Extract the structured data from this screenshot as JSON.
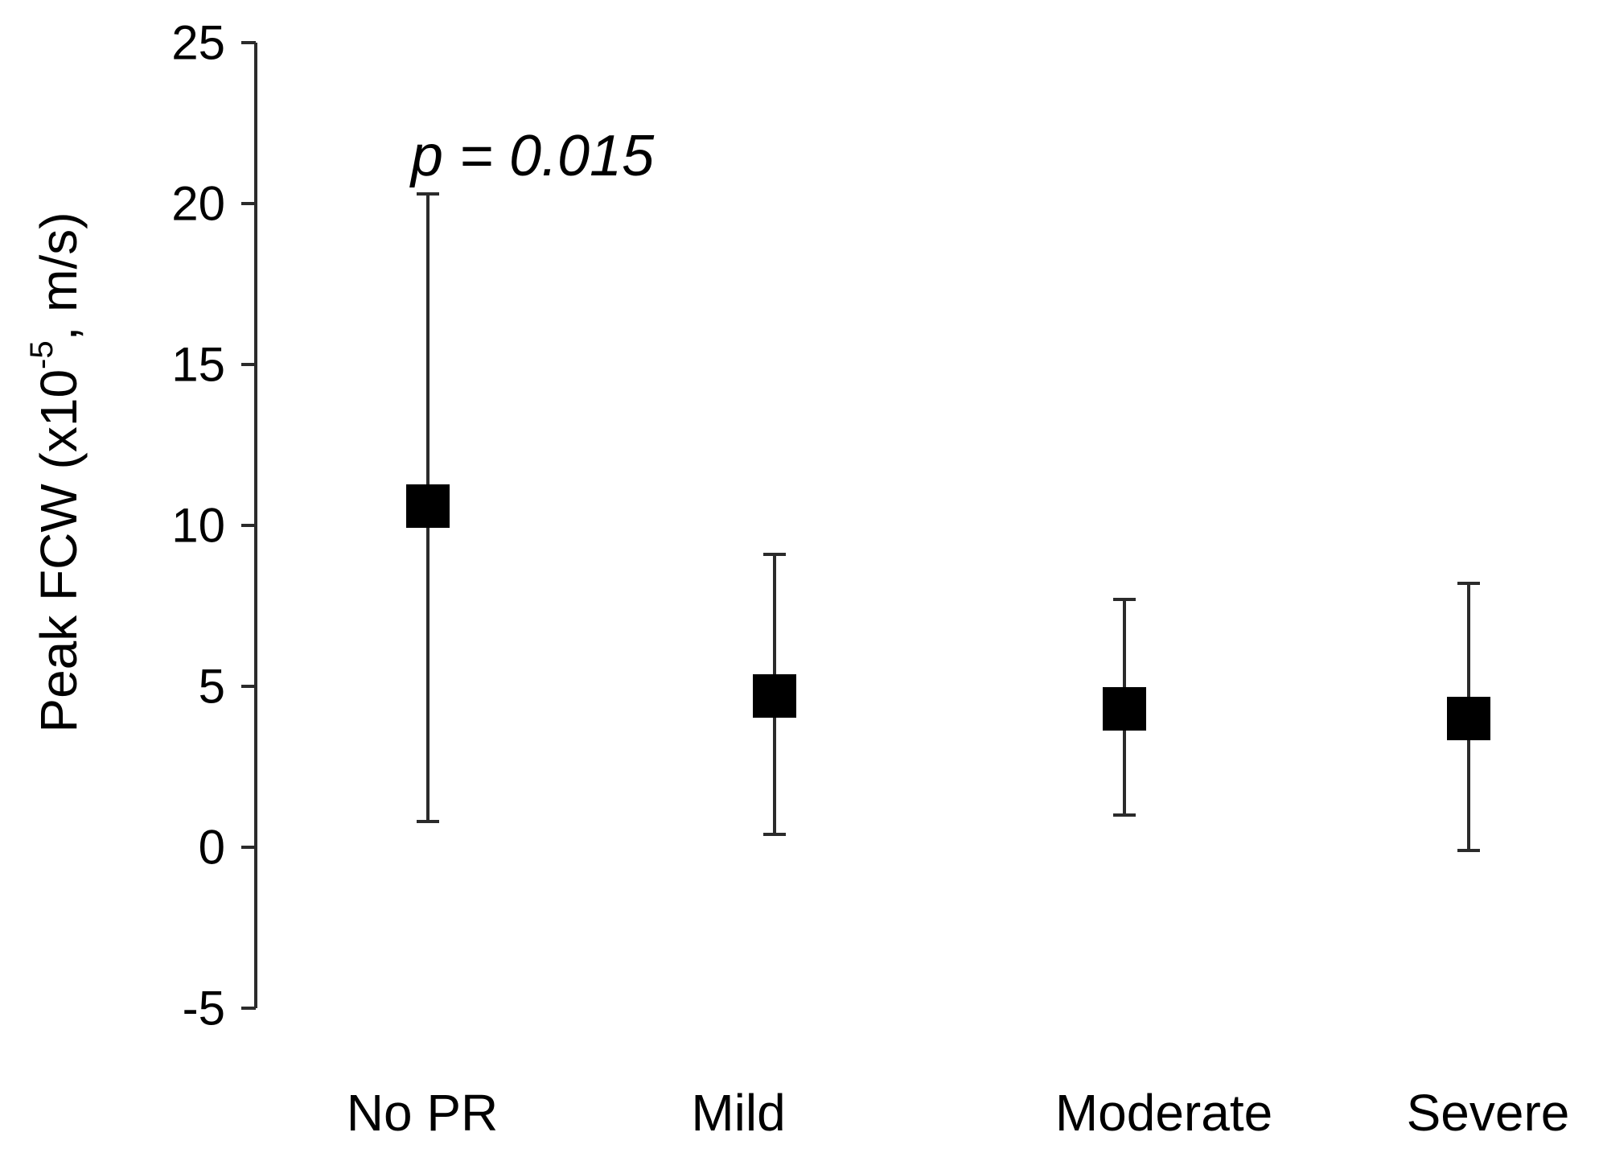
{
  "chart_data": {
    "type": "scatter",
    "title": "",
    "xlabel": "",
    "ylabel": {
      "prefix": "Peak FCW (x10",
      "superscript": "-5",
      "suffix": ", m/s)"
    },
    "ylim": [
      -5,
      25
    ],
    "yticks": [
      -5,
      0,
      5,
      10,
      15,
      20,
      25
    ],
    "categories": [
      "No PR",
      "Mild",
      "Moderate",
      "Severe"
    ],
    "series": [
      {
        "marker": "square",
        "color": "#000000",
        "mean": [
          10.6,
          4.7,
          4.3,
          4.0
        ],
        "upper": [
          20.3,
          9.1,
          7.7,
          8.2
        ],
        "lower": [
          0.8,
          0.4,
          1.0,
          -0.1
        ]
      }
    ],
    "annotations": [
      {
        "text_italic": "p = 0.015",
        "category": "No PR"
      }
    ],
    "grid": false,
    "legend": "none"
  }
}
